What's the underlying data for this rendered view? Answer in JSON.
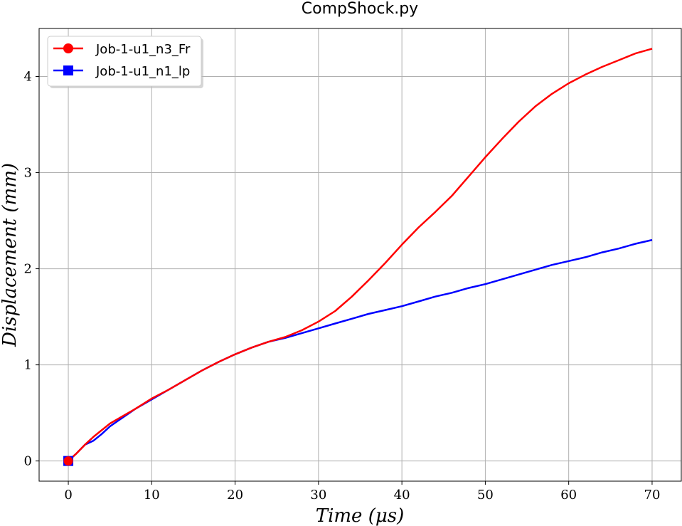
{
  "chart_data": {
    "type": "line",
    "title": "CompShock.py",
    "xlabel": "Time (μs)",
    "ylabel": "Displacement (mm)",
    "xlim": [
      -3.5,
      73.5
    ],
    "ylim": [
      -0.21,
      4.5
    ],
    "xticks": [
      0,
      10,
      20,
      30,
      40,
      50,
      60,
      70
    ],
    "yticks": [
      0,
      1,
      2,
      3,
      4
    ],
    "grid": true,
    "legend_position": "top-left",
    "series": [
      {
        "name": "Job-1-u1_n3_Fr",
        "color": "#ff0000",
        "marker": "circle",
        "x": [
          0,
          1,
          2,
          3,
          4,
          5,
          6,
          7,
          8,
          10,
          12,
          14,
          16,
          18,
          20,
          22,
          24,
          26,
          28,
          30,
          32,
          34,
          36,
          38,
          40,
          42,
          44,
          46,
          48,
          50,
          52,
          54,
          56,
          58,
          60,
          62,
          64,
          66,
          68,
          70
        ],
        "y": [
          0,
          0.08,
          0.17,
          0.25,
          0.32,
          0.39,
          0.44,
          0.49,
          0.54,
          0.65,
          0.74,
          0.84,
          0.94,
          1.03,
          1.11,
          1.18,
          1.24,
          1.29,
          1.36,
          1.45,
          1.56,
          1.71,
          1.88,
          2.06,
          2.25,
          2.43,
          2.59,
          2.76,
          2.96,
          3.16,
          3.35,
          3.53,
          3.69,
          3.82,
          3.93,
          4.02,
          4.1,
          4.17,
          4.24,
          4.29
        ]
      },
      {
        "name": "Job-1-u1_n1_lp",
        "color": "#0000ff",
        "marker": "square",
        "x": [
          0,
          1,
          2,
          3,
          4,
          5,
          6,
          7,
          8,
          10,
          12,
          14,
          16,
          18,
          20,
          22,
          24,
          26,
          28,
          30,
          32,
          34,
          36,
          38,
          40,
          42,
          44,
          46,
          48,
          50,
          52,
          54,
          56,
          58,
          60,
          62,
          64,
          66,
          68,
          70
        ],
        "y": [
          0,
          0.08,
          0.17,
          0.21,
          0.28,
          0.36,
          0.42,
          0.48,
          0.54,
          0.64,
          0.74,
          0.84,
          0.94,
          1.03,
          1.11,
          1.18,
          1.24,
          1.28,
          1.33,
          1.38,
          1.43,
          1.48,
          1.53,
          1.57,
          1.61,
          1.66,
          1.71,
          1.75,
          1.8,
          1.84,
          1.89,
          1.94,
          1.99,
          2.04,
          2.08,
          2.12,
          2.17,
          2.21,
          2.26,
          2.3
        ]
      }
    ]
  }
}
